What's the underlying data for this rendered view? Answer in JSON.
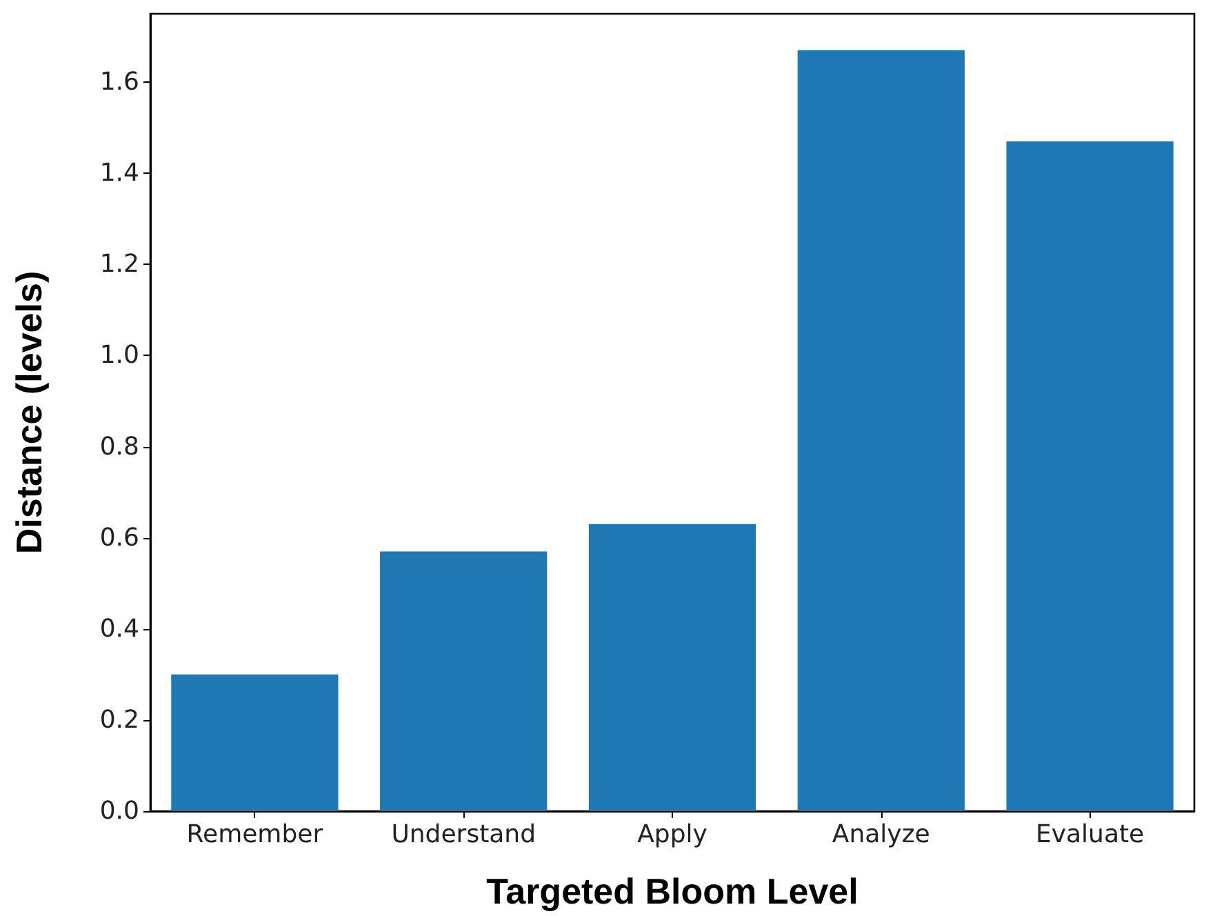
{
  "chart_data": {
    "type": "bar",
    "xlabel": "Targeted Bloom Level",
    "ylabel": "Distance (levels)",
    "categories": [
      "Remember",
      "Understand",
      "Apply",
      "Analyze",
      "Evaluate"
    ],
    "values": [
      0.3,
      0.57,
      0.63,
      1.67,
      1.47
    ],
    "color": "#1f77b4",
    "ylim": [
      0,
      1.75
    ],
    "yticks": [
      {
        "value": 0,
        "label": "0.0"
      },
      0.2,
      0.4,
      0.6,
      0.8,
      {
        "value": 1,
        "label": "1.0"
      },
      1.2,
      1.4,
      1.6
    ],
    "grid": false
  }
}
